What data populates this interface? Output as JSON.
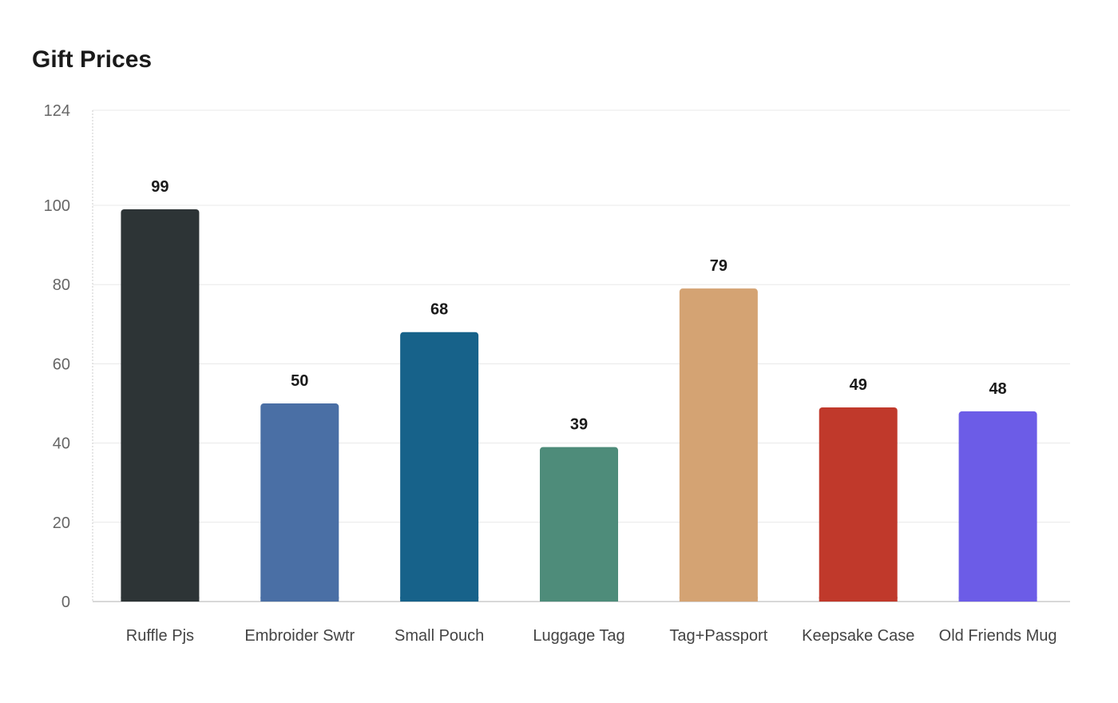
{
  "chart_data": {
    "type": "bar",
    "title": "Gift Prices",
    "xlabel": "",
    "ylabel": "",
    "categories": [
      "Ruffle Pjs",
      "Embroider Swtr",
      "Small Pouch",
      "Luggage Tag",
      "Tag+Passport",
      "Keepsake Case",
      "Old Friends Mug"
    ],
    "values": [
      99,
      50,
      68,
      39,
      79,
      49,
      48
    ],
    "colors": [
      "#2d3436",
      "#4a6fa5",
      "#17628a",
      "#4e8c7a",
      "#d4a373",
      "#c0392b",
      "#6c5ce7"
    ],
    "ylim": [
      0,
      124
    ],
    "yticks": [
      0,
      20,
      40,
      60,
      80,
      100,
      124
    ],
    "grid": true,
    "legend": "none",
    "data_labels": true
  }
}
